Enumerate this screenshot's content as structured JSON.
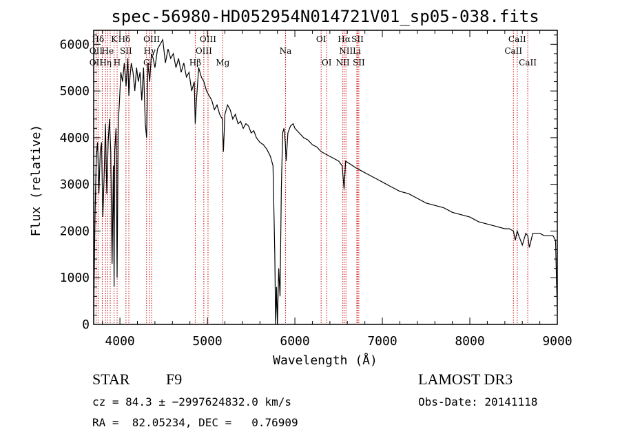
{
  "chart_data": {
    "type": "line",
    "title": "spec-56980-HD052954N014721V01_sp05-038.fits",
    "xlabel": "Wavelength (Å)",
    "ylabel": "Flux (relative)",
    "xlim": [
      3700,
      9000
    ],
    "ylim": [
      0,
      6300
    ],
    "x_ticks": [
      4000,
      5000,
      6000,
      7000,
      8000,
      9000
    ],
    "y_ticks": [
      0,
      1000,
      2000,
      3000,
      4000,
      5000,
      6000
    ],
    "line_color": "#000000",
    "marker_color": "#cc0000",
    "series": [
      {
        "name": "flux",
        "x": [
          3700,
          3715,
          3730,
          3745,
          3760,
          3775,
          3790,
          3805,
          3820,
          3835,
          3850,
          3865,
          3880,
          3895,
          3910,
          3925,
          3933,
          3940,
          3955,
          3968,
          3980,
          3995,
          4010,
          4030,
          4050,
          4070,
          4090,
          4102,
          4115,
          4130,
          4150,
          4170,
          4190,
          4210,
          4230,
          4250,
          4270,
          4290,
          4305,
          4320,
          4340,
          4360,
          4380,
          4400,
          4430,
          4460,
          4490,
          4520,
          4550,
          4580,
          4610,
          4640,
          4670,
          4700,
          4730,
          4760,
          4790,
          4820,
          4850,
          4861,
          4875,
          4900,
          4930,
          4960,
          4990,
          5020,
          5050,
          5080,
          5110,
          5140,
          5170,
          5183,
          5200,
          5230,
          5260,
          5290,
          5320,
          5350,
          5380,
          5410,
          5440,
          5470,
          5500,
          5530,
          5560,
          5600,
          5640,
          5680,
          5720,
          5750,
          5770,
          5780,
          5790,
          5800,
          5815,
          5830,
          5845,
          5860,
          5875,
          5890,
          5900,
          5920,
          5950,
          5980,
          6000,
          6050,
          6100,
          6150,
          6200,
          6250,
          6300,
          6350,
          6400,
          6450,
          6500,
          6540,
          6563,
          6580,
          6620,
          6660,
          6700,
          6750,
          6800,
          6850,
          6900,
          6950,
          7000,
          7100,
          7200,
          7300,
          7400,
          7500,
          7600,
          7700,
          7800,
          7900,
          8000,
          8100,
          8200,
          8300,
          8400,
          8450,
          8498,
          8520,
          8542,
          8560,
          8600,
          8640,
          8662,
          8680,
          8720,
          8760,
          8800,
          8850,
          8900,
          8950,
          8980,
          8990,
          9000
        ],
        "y": [
          100,
          2300,
          3600,
          3900,
          2800,
          3700,
          3900,
          2300,
          3200,
          4300,
          2800,
          3900,
          4400,
          3700,
          1300,
          3400,
          800,
          3700,
          4200,
          1000,
          4300,
          4800,
          5400,
          5200,
          5600,
          5100,
          5700,
          4900,
          5300,
          5600,
          5400,
          5000,
          5500,
          5200,
          5400,
          4800,
          5500,
          4300,
          4000,
          5600,
          5200,
          5800,
          5700,
          5500,
          5900,
          6000,
          6100,
          5600,
          5900,
          5700,
          5800,
          5500,
          5700,
          5400,
          5600,
          5300,
          5400,
          5000,
          5200,
          4300,
          4800,
          5500,
          5300,
          5200,
          5000,
          4900,
          4800,
          4600,
          4700,
          4500,
          4400,
          3700,
          4500,
          4700,
          4600,
          4400,
          4500,
          4300,
          4350,
          4200,
          4300,
          4250,
          4100,
          4150,
          4000,
          3900,
          3850,
          3750,
          3600,
          3400,
          1500,
          0,
          800,
          0,
          1200,
          600,
          2900,
          4100,
          4200,
          3900,
          3500,
          4100,
          4250,
          4300,
          4200,
          4100,
          4000,
          3950,
          3850,
          3800,
          3700,
          3650,
          3600,
          3550,
          3500,
          3400,
          2900,
          3500,
          3450,
          3400,
          3350,
          3300,
          3250,
          3200,
          3150,
          3100,
          3050,
          2950,
          2850,
          2800,
          2700,
          2600,
          2550,
          2500,
          2400,
          2350,
          2300,
          2200,
          2150,
          2100,
          2050,
          2050,
          2000,
          1800,
          2000,
          1900,
          1700,
          1950,
          1900,
          1650,
          1950,
          1950,
          1950,
          1900,
          1900,
          1900,
          1800,
          1000,
          300
        ]
      }
    ],
    "line_markers": [
      {
        "label": "Hδ",
        "x": 3750,
        "row": 1
      },
      {
        "label": "K",
        "x": 3933,
        "row": 1
      },
      {
        "label": "Hδ",
        "x": 4050,
        "row": 1
      },
      {
        "label": "OIII",
        "x": 4363,
        "row": 1
      },
      {
        "label": "OIII",
        "x": 5007,
        "row": 1
      },
      {
        "label": "OI",
        "x": 6300,
        "row": 1
      },
      {
        "label": "Hα",
        "x": 6563,
        "row": 1
      },
      {
        "label": "SII",
        "x": 6716,
        "row": 1
      },
      {
        "label": "CaII",
        "x": 8542,
        "row": 1
      },
      {
        "label": "OII",
        "x": 3727,
        "row": 2
      },
      {
        "label": "He",
        "x": 3860,
        "row": 2
      },
      {
        "label": "SII",
        "x": 4069,
        "row": 2
      },
      {
        "label": "Hγ",
        "x": 4340,
        "row": 2
      },
      {
        "label": "OIII",
        "x": 4959,
        "row": 2
      },
      {
        "label": "Na",
        "x": 5893,
        "row": 2
      },
      {
        "label": "NII",
        "x": 6584,
        "row": 2
      },
      {
        "label": "Li",
        "x": 6708,
        "row": 2
      },
      {
        "label": "CaII",
        "x": 8498,
        "row": 2
      },
      {
        "label": "OII",
        "x": 3727,
        "row": 3
      },
      {
        "label": "Hη",
        "x": 3835,
        "row": 3
      },
      {
        "label": "H",
        "x": 3968,
        "row": 3
      },
      {
        "label": "G",
        "x": 4305,
        "row": 3
      },
      {
        "label": "Hβ",
        "x": 4861,
        "row": 3
      },
      {
        "label": "Mg",
        "x": 5175,
        "row": 3
      },
      {
        "label": "OI",
        "x": 6363,
        "row": 3
      },
      {
        "label": "NII",
        "x": 6548,
        "row": 3
      },
      {
        "label": "SII",
        "x": 6731,
        "row": 3
      },
      {
        "label": "CaII",
        "x": 8662,
        "row": 3
      }
    ],
    "marker_lines_x": [
      3727,
      3750,
      3798,
      3835,
      3860,
      3889,
      3933,
      3968,
      4069,
      4102,
      4305,
      4340,
      4363,
      4861,
      4959,
      5007,
      5175,
      5893,
      6300,
      6363,
      6548,
      6563,
      6584,
      6708,
      6716,
      6731,
      8498,
      8542,
      8662
    ]
  },
  "info": {
    "object_class": "STAR",
    "subclass": "F9",
    "survey": "LAMOST DR3",
    "cz": "cz = 84.3 ± −2997624832.0 km/s",
    "obs_date": "Obs-Date: 20141118",
    "radec": "RA =  82.05234, DEC =   0.76909"
  }
}
